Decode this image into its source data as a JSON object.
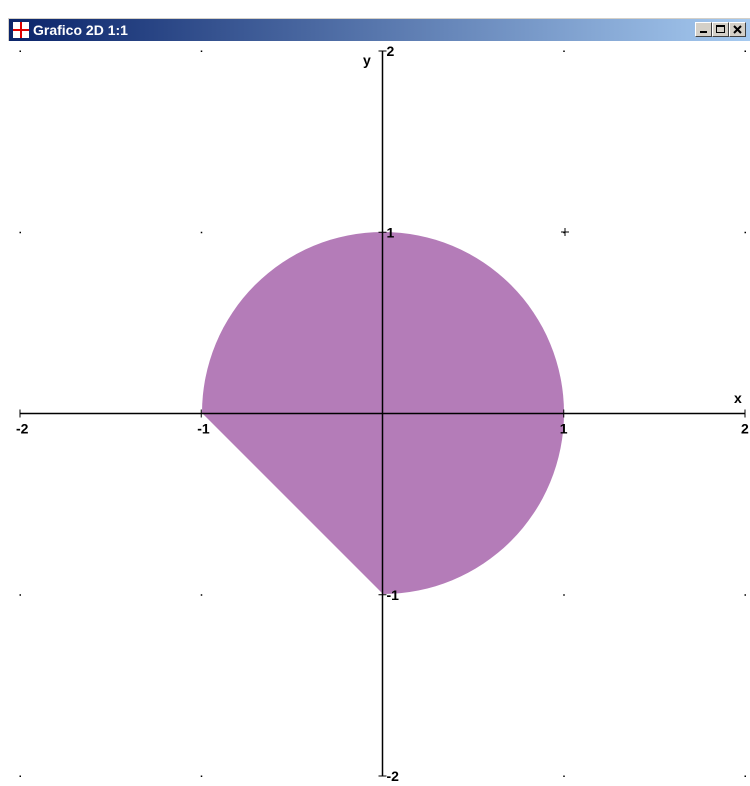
{
  "window": {
    "title": "Grafico 2D 1:1"
  },
  "plot": {
    "x_label": "x",
    "y_label": "y",
    "xlim": [
      -2,
      2
    ],
    "ylim": [
      -2,
      2
    ],
    "xticks": [
      -2,
      -1,
      1,
      2
    ],
    "yticks": [
      2,
      1,
      -1,
      -2
    ]
  }
}
